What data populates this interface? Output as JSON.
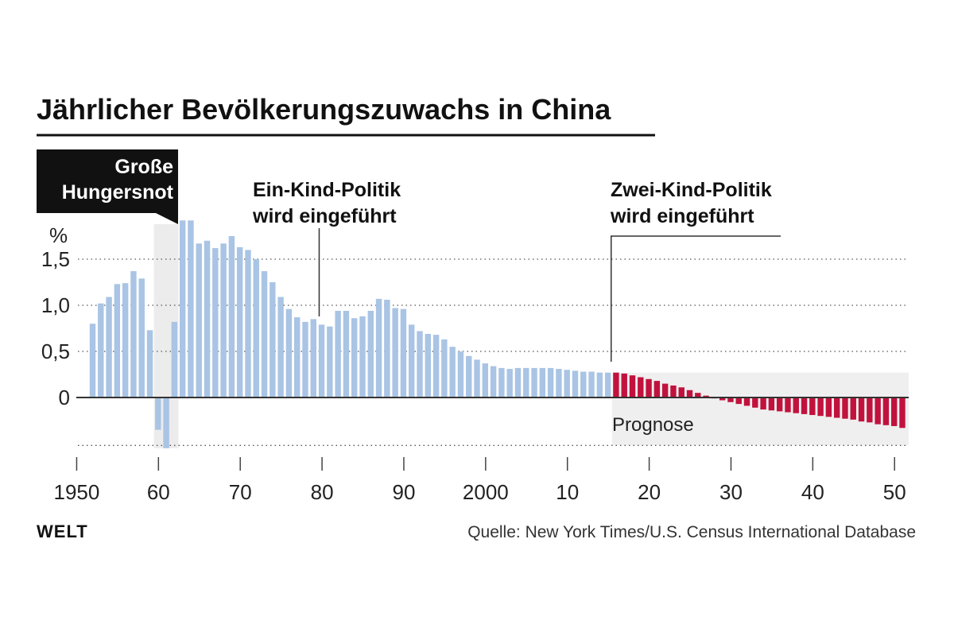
{
  "chart_data": {
    "type": "bar",
    "title": "Jährlicher Bevölkerungszuwachs in China",
    "y_unit_label": "%",
    "ylim": [
      -0.55,
      1.9
    ],
    "y_ticks": [
      {
        "value": 1.5,
        "label": "1,5"
      },
      {
        "value": 1.0,
        "label": "1,0"
      },
      {
        "value": 0.5,
        "label": "0,5"
      },
      {
        "value": 0,
        "label": "0"
      }
    ],
    "x_ticks": [
      {
        "year": 1950,
        "label": "1950"
      },
      {
        "year": 1960,
        "label": "60"
      },
      {
        "year": 1970,
        "label": "70"
      },
      {
        "year": 1980,
        "label": "80"
      },
      {
        "year": 1990,
        "label": "90"
      },
      {
        "year": 2000,
        "label": "2000"
      },
      {
        "year": 2010,
        "label": "10"
      },
      {
        "year": 2020,
        "label": "20"
      },
      {
        "year": 2030,
        "label": "30"
      },
      {
        "year": 2040,
        "label": "40"
      },
      {
        "year": 2050,
        "label": "50"
      }
    ],
    "x_range": [
      1950,
      2050
    ],
    "grid": "dotted-horizontal",
    "series": [
      {
        "name": "",
        "color": "#a9c4e4",
        "x": [
          1951,
          1952,
          1953,
          1954,
          1955,
          1956,
          1957,
          1958,
          1959,
          1960,
          1961,
          1962,
          1963,
          1964,
          1965,
          1966,
          1967,
          1968,
          1969,
          1970,
          1971,
          1972,
          1973,
          1974,
          1975,
          1976,
          1977,
          1978,
          1979,
          1980,
          1981,
          1982,
          1983,
          1984,
          1985,
          1986,
          1987,
          1988,
          1989,
          1990,
          1991,
          1992,
          1993,
          1994,
          1995,
          1996,
          1997,
          1998,
          1999,
          2000,
          2001,
          2002,
          2003,
          2004,
          2005,
          2006,
          2007,
          2008,
          2009,
          2010,
          2011,
          2012,
          2013,
          2014
        ],
        "values": [
          0.8,
          1.02,
          1.09,
          1.23,
          1.24,
          1.37,
          1.29,
          0.73,
          -0.35,
          -0.55,
          0.82,
          1.92,
          1.92,
          1.67,
          1.7,
          1.62,
          1.67,
          1.75,
          1.63,
          1.6,
          1.5,
          1.37,
          1.25,
          1.09,
          0.96,
          0.87,
          0.82,
          0.85,
          0.79,
          0.77,
          0.94,
          0.94,
          0.86,
          0.88,
          0.94,
          1.07,
          1.06,
          0.97,
          0.96,
          0.79,
          0.72,
          0.69,
          0.68,
          0.63,
          0.55,
          0.5,
          0.45,
          0.41,
          0.37,
          0.34,
          0.32,
          0.31,
          0.32,
          0.32,
          0.32,
          0.32,
          0.32,
          0.31,
          0.3,
          0.29,
          0.28,
          0.28,
          0.27,
          0.27
        ]
      },
      {
        "name": "Prognose",
        "color": "#c1123d",
        "x": [
          2015,
          2016,
          2017,
          2018,
          2019,
          2020,
          2021,
          2022,
          2023,
          2024,
          2025,
          2026,
          2027,
          2028,
          2029,
          2030,
          2031,
          2032,
          2033,
          2034,
          2035,
          2036,
          2037,
          2038,
          2039,
          2040,
          2041,
          2042,
          2043,
          2044,
          2045,
          2046,
          2047,
          2048,
          2049,
          2050
        ],
        "values": [
          0.27,
          0.26,
          0.24,
          0.22,
          0.2,
          0.18,
          0.15,
          0.13,
          0.11,
          0.08,
          0.05,
          0.02,
          -0.01,
          -0.03,
          -0.05,
          -0.07,
          -0.09,
          -0.11,
          -0.13,
          -0.14,
          -0.15,
          -0.16,
          -0.17,
          -0.18,
          -0.19,
          -0.2,
          -0.21,
          -0.22,
          -0.23,
          -0.24,
          -0.26,
          -0.27,
          -0.29,
          -0.3,
          -0.31,
          -0.33
        ]
      }
    ],
    "annotations": {
      "famine": {
        "lines": [
          "Große",
          "Hungersnot"
        ],
        "start_year": 1959,
        "end_year": 1961
      },
      "one_child": {
        "lines": [
          "Ein-Kind-Politik",
          "wird eingeführt"
        ],
        "year": 1979
      },
      "two_child": {
        "lines": [
          "Zwei-Kind-Politik",
          "wird eingeführt"
        ],
        "year": 2015
      },
      "forecast": {
        "label": "Prognose",
        "start_year": 2015
      }
    }
  },
  "footer": {
    "brand": "WELT",
    "source": "Quelle: New York Times/U.S. Census International Database"
  }
}
